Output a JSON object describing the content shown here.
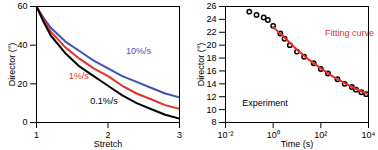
{
  "chart_data": [
    {
      "type": "line",
      "x_label": "Stretch",
      "y_label": "Director (°)",
      "xlim": [
        1,
        3
      ],
      "xticks": [
        1,
        2,
        3
      ],
      "ylim": [
        0,
        60
      ],
      "yticks": [
        0,
        20,
        40,
        60
      ],
      "grid": false,
      "series": [
        {
          "name": "10%/s",
          "color": "#3f51b5",
          "line_style": "solid",
          "x": [
            1,
            1.1,
            1.2,
            1.4,
            1.6,
            1.8,
            2.0,
            2.2,
            2.4,
            2.6,
            2.8,
            3.0
          ],
          "values": [
            60,
            54,
            49,
            42,
            37,
            32,
            28,
            24,
            21,
            18,
            15,
            13
          ]
        },
        {
          "name": "1%/s",
          "color": "#e53027",
          "line_style": "solid",
          "x": [
            1,
            1.1,
            1.2,
            1.4,
            1.6,
            1.8,
            2.0,
            2.2,
            2.4,
            2.6,
            2.8,
            3.0
          ],
          "values": [
            60,
            53,
            47,
            39,
            33,
            28,
            24,
            19,
            15,
            12,
            9,
            7
          ]
        },
        {
          "name": "0.1%/s",
          "color": "#000000",
          "line_style": "solid",
          "x": [
            1,
            1.1,
            1.2,
            1.4,
            1.6,
            1.8,
            2.0,
            2.2,
            2.4,
            2.6,
            2.8,
            3.0
          ],
          "values": [
            60,
            52,
            45,
            36,
            29,
            24,
            19,
            14,
            10,
            7,
            4,
            2
          ]
        }
      ],
      "annotations": [
        {
          "text": "10%/s",
          "x": 2.25,
          "y": 37,
          "color": "#3f51b5"
        },
        {
          "text": "1%/s",
          "x": 1.45,
          "y": 24,
          "color": "#e53027"
        },
        {
          "text": "0.1%/s",
          "x": 1.75,
          "y": 11,
          "color": "#000000"
        }
      ]
    },
    {
      "type": "line",
      "log": "x",
      "x_label": "Time (s)",
      "y_label": "Director (°)",
      "xlim": [
        0.01,
        10000
      ],
      "xticks": [
        {
          "value": 0.01,
          "label": "10⁻²"
        },
        {
          "value": 1,
          "label": "10⁰"
        },
        {
          "value": 100,
          "label": "10²"
        },
        {
          "value": 10000,
          "label": "10⁴"
        }
      ],
      "ylim": [
        8,
        26
      ],
      "yticks": [
        8,
        10,
        12,
        14,
        16,
        18,
        20,
        22,
        24,
        26
      ],
      "grid": false,
      "series": [
        {
          "name": "Experiment",
          "type": "scatter",
          "marker": "circle",
          "color": "#000000",
          "x": [
            0.1,
            0.2,
            0.4,
            0.6,
            1,
            2,
            3,
            5,
            10,
            20,
            50,
            100,
            200,
            500,
            1000,
            2000,
            3000,
            5000,
            8000
          ],
          "values": [
            25.2,
            24.7,
            24.3,
            23.9,
            23.0,
            21.8,
            21.0,
            20.0,
            19.0,
            18.2,
            17.2,
            16.3,
            15.6,
            14.7,
            14.0,
            13.5,
            13.1,
            12.7,
            12.4
          ]
        },
        {
          "name": "Fitting curve",
          "type": "line",
          "line_style": "solid",
          "color": "#e53027",
          "x": [
            1,
            3,
            10,
            30,
            100,
            300,
            1000,
            3000,
            8000
          ],
          "values": [
            22.8,
            21.2,
            19.3,
            17.8,
            16.4,
            15.2,
            14.1,
            13.2,
            12.5
          ]
        }
      ],
      "annotations": [
        {
          "text": "Fitting curve",
          "x": 150,
          "y": 21.8,
          "color": "#e53027"
        },
        {
          "text": "Experiment",
          "x": 0.05,
          "y": 11,
          "color": "#000000"
        }
      ]
    }
  ]
}
